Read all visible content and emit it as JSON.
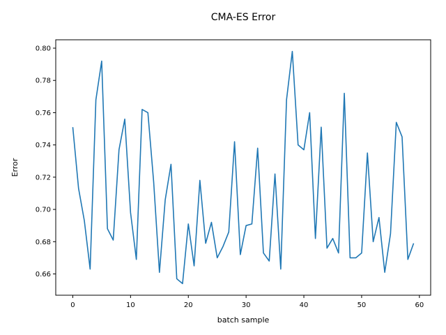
{
  "chart_data": {
    "type": "line",
    "title": "CMA-ES Error",
    "xlabel": "batch sample",
    "ylabel": "Error",
    "xlim": [
      -2.95,
      61.95
    ],
    "ylim": [
      0.6468,
      0.8052
    ],
    "xticks": [
      0,
      10,
      20,
      30,
      40,
      50,
      60
    ],
    "yticks": [
      0.66,
      0.68,
      0.7,
      0.72,
      0.74,
      0.76,
      0.78,
      0.8
    ],
    "ytick_labels": [
      "0.66",
      "0.68",
      "0.70",
      "0.72",
      "0.74",
      "0.76",
      "0.78",
      "0.80"
    ],
    "grid": false,
    "series_color": "#1f77b4",
    "series": [
      {
        "x": [
          0,
          1,
          2,
          3,
          4,
          5,
          6,
          7,
          8,
          9,
          10,
          11,
          12,
          13,
          14,
          15,
          16,
          17,
          18,
          19,
          20,
          21,
          22,
          23,
          24,
          25,
          26,
          27,
          28,
          29,
          30,
          31,
          32,
          33,
          34,
          35,
          36,
          37,
          38,
          39,
          40,
          41,
          42,
          43,
          44,
          45,
          46,
          47,
          48,
          49,
          50,
          51,
          52,
          53,
          54,
          55,
          56,
          57,
          58,
          59
        ],
        "values": [
          0.751,
          0.713,
          0.693,
          0.663,
          0.768,
          0.792,
          0.688,
          0.681,
          0.737,
          0.756,
          0.698,
          0.669,
          0.762,
          0.76,
          0.717,
          0.661,
          0.706,
          0.728,
          0.657,
          0.654,
          0.691,
          0.665,
          0.718,
          0.679,
          0.692,
          0.67,
          0.677,
          0.686,
          0.742,
          0.672,
          0.69,
          0.691,
          0.738,
          0.673,
          0.668,
          0.722,
          0.663,
          0.768,
          0.798,
          0.74,
          0.737,
          0.76,
          0.682,
          0.751,
          0.676,
          0.682,
          0.673,
          0.772,
          0.67,
          0.67,
          0.673,
          0.735,
          0.68,
          0.695,
          0.661,
          0.685,
          0.754,
          0.745,
          0.669,
          0.679
        ]
      }
    ]
  }
}
